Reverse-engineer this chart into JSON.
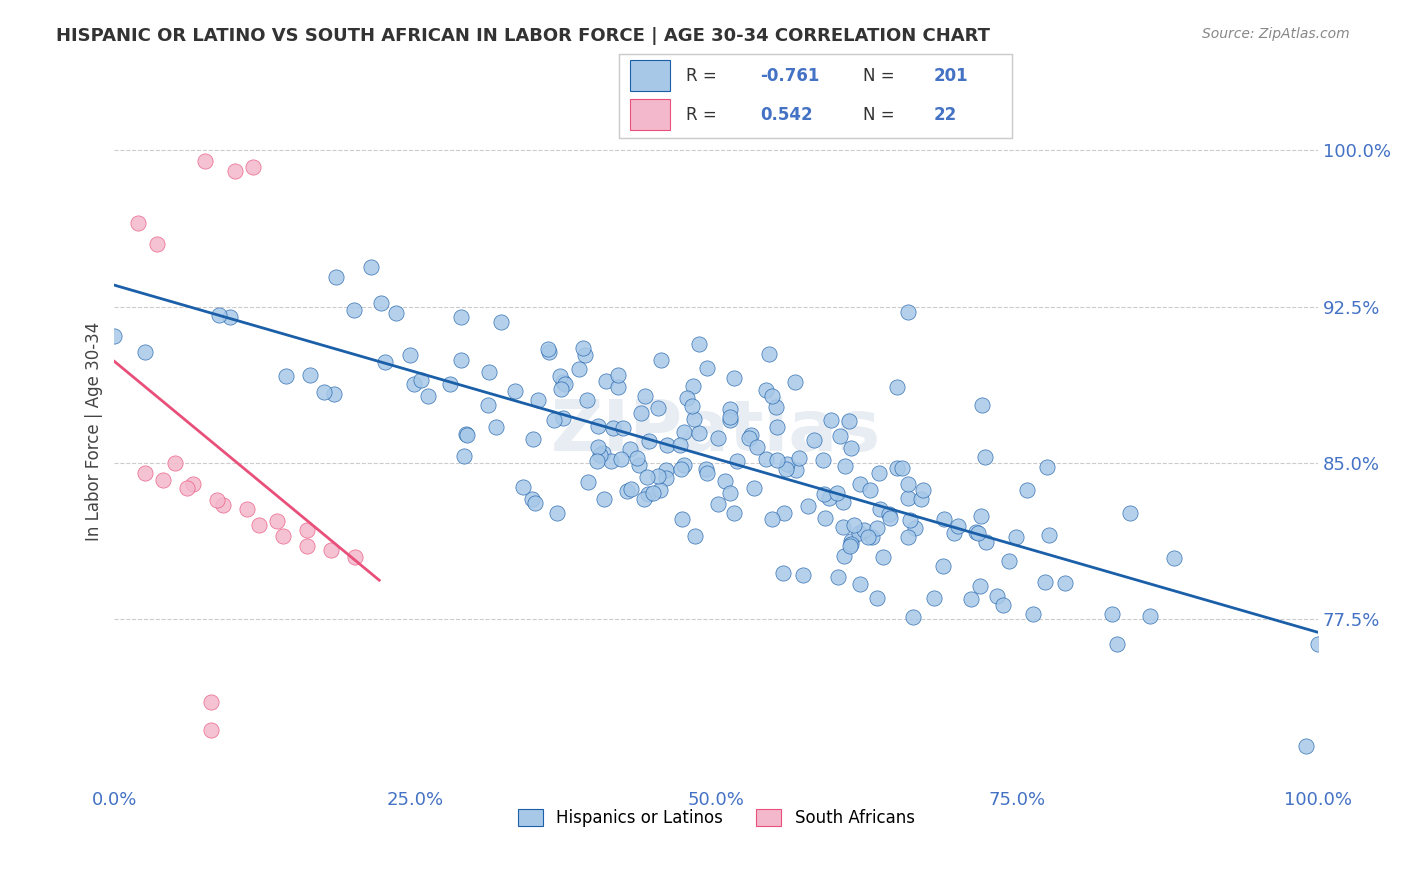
{
  "title": "HISPANIC OR LATINO VS SOUTH AFRICAN IN LABOR FORCE | AGE 30-34 CORRELATION CHART",
  "source": "Source: ZipAtlas.com",
  "ylabel": "In Labor Force | Age 30-34",
  "xlim": [
    0.0,
    1.0
  ],
  "ylim": [
    0.695,
    1.035
  ],
  "yticks": [
    0.775,
    0.85,
    0.925,
    1.0
  ],
  "ytick_labels": [
    "77.5%",
    "85.0%",
    "92.5%",
    "100.0%"
  ],
  "xticks": [
    0.0,
    0.25,
    0.5,
    0.75,
    1.0
  ],
  "xtick_labels": [
    "0.0%",
    "25.0%",
    "50.0%",
    "75.0%",
    "100.0%"
  ],
  "blue_R": -0.761,
  "blue_N": 201,
  "pink_R": 0.542,
  "pink_N": 22,
  "blue_color": "#a8c8e8",
  "pink_color": "#f4b8cc",
  "blue_line_color": "#1a5fa8",
  "pink_line_color": "#e8507a",
  "legend_blue_label": "Hispanics or Latinos",
  "legend_pink_label": "South Africans",
  "watermark": "ZIPatlas",
  "background_color": "#ffffff",
  "grid_color": "#cccccc",
  "title_color": "#333333",
  "tick_label_color": "#4472c4"
}
